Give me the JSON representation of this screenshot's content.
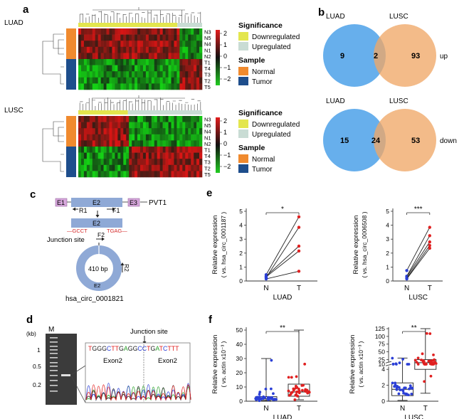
{
  "panels": {
    "a": "a",
    "b": "b",
    "c": "c",
    "d": "d",
    "e": "e",
    "f": "f"
  },
  "colors": {
    "down": "#e3e64e",
    "up": "#c9dcd4",
    "normal": "#f08a2e",
    "tumor": "#1e4e8c",
    "venn_luad": "#5aa8ea",
    "venn_lusc": "#f0a868",
    "heat_red": "#e21d1d",
    "heat_green": "#22cc22",
    "exon_fill": "#8fa9d6",
    "exon_box": "#d7a7dc",
    "blue_point": "#2b3fd6",
    "red_point": "#e02020"
  },
  "heatmaps": [
    {
      "label": "LUAD",
      "rows": [
        "N3",
        "N5",
        "N4",
        "N1",
        "N2",
        "T1",
        "T4",
        "T3",
        "T2",
        "T5"
      ]
    },
    {
      "label": "LUSC",
      "rows": [
        "N3",
        "N5",
        "N4",
        "N1",
        "N2",
        "T1",
        "T4",
        "T3",
        "T2",
        "T5"
      ]
    }
  ],
  "heat_legend": {
    "ticks": [
      "2",
      "1",
      "0",
      "−1",
      "−2"
    ],
    "significance_title": "Significance",
    "downregulated": "Downregulated",
    "upregulated": "Upregulated",
    "sample_title": "Sample",
    "normal": "Normal",
    "tumor": "Tumor"
  },
  "venn": [
    {
      "left_label": "LUAD",
      "right_label": "LUSC",
      "left": "9",
      "both": "2",
      "right": "93",
      "side_label": "up"
    },
    {
      "left_label": "LUAD",
      "right_label": "LUSC",
      "left": "15",
      "both": "24",
      "right": "53",
      "side_label": "down"
    }
  ],
  "schematic": {
    "e1": "E1",
    "e2": "E2",
    "e3": "E3",
    "gene": "PVT1",
    "r1": "R1",
    "f1": "F1",
    "f2": "F2",
    "r2": "R2",
    "seq_left": "—GCCT",
    "seq_right": "TGAG—",
    "junction": "Junction site",
    "bp": "410 bp",
    "ring_exon": "E2",
    "circ_name": "hsa_circ_0001821"
  },
  "gel": {
    "kb_label": "(kb)",
    "marker": "M",
    "ladder": [
      "1",
      "0.5",
      "0.2"
    ],
    "junction": "Junction site",
    "sequence": "TGGGCTTGAGGCCTGATCTTT",
    "exon_left": "Exon2",
    "exon_right": "Exon2"
  },
  "chart_data": [
    {
      "type": "line",
      "panel": "e",
      "ylabel": "Relative expression",
      "ylabel2": "( vs. hsa_circ_0001187 )",
      "xlabel": "LUAD",
      "categories": [
        "N",
        "T"
      ],
      "yticks": [
        "0",
        "1",
        "2",
        "3",
        "4",
        "5"
      ],
      "ylim": [
        0,
        5
      ],
      "significance": "*",
      "pairs": [
        [
          0.45,
          4.6
        ],
        [
          0.25,
          3.85
        ],
        [
          0.35,
          2.5
        ],
        [
          0.3,
          2.15
        ],
        [
          0.15,
          0.7
        ]
      ]
    },
    {
      "type": "line",
      "panel": "e",
      "ylabel": "Relative expression",
      "ylabel2": "( vs. hsa_circ_0006508 )",
      "xlabel": "LUSC",
      "categories": [
        "N",
        "T"
      ],
      "yticks": [
        "0",
        "1",
        "2",
        "3",
        "4",
        "5"
      ],
      "ylim": [
        0,
        5
      ],
      "significance": "***",
      "pairs": [
        [
          0.75,
          3.85
        ],
        [
          0.35,
          3.25
        ],
        [
          0.3,
          2.8
        ],
        [
          0.2,
          2.55
        ],
        [
          0.15,
          2.35
        ]
      ]
    },
    {
      "type": "box",
      "panel": "f",
      "ylabel": "Relative expression",
      "ylabel2": "( vs. actin x10⁻³ )",
      "xlabel": "LUAD",
      "categories": [
        "N",
        "T"
      ],
      "yticks": [
        "0",
        "10",
        "20",
        "30",
        "40",
        "50"
      ],
      "ylim": [
        0,
        50
      ],
      "significance": "**",
      "boxes": [
        {
          "min": 0.3,
          "q1": 1.0,
          "median": 1.8,
          "q3": 3.2,
          "max": 30
        },
        {
          "min": 1.0,
          "q1": 3.5,
          "median": 6.5,
          "q3": 12,
          "max": 50
        }
      ]
    },
    {
      "type": "box",
      "panel": "f",
      "ylabel": "Relative expression",
      "ylabel2": "( vs. actin x10⁻³ )",
      "xlabel": "LUSC",
      "categories": [
        "N",
        "T"
      ],
      "yticks_lower": [
        "0",
        "2",
        "4"
      ],
      "yticks_upper": [
        "10",
        "25",
        "50",
        "75",
        "100",
        "125"
      ],
      "significance": "**",
      "boxes": [
        {
          "min": 0.1,
          "q1": 0.7,
          "median": 1.5,
          "q3": 2.3,
          "max": 30
        },
        {
          "min": 1.0,
          "q1": 4.0,
          "median": 15,
          "q3": 25,
          "max": 125
        }
      ]
    }
  ]
}
